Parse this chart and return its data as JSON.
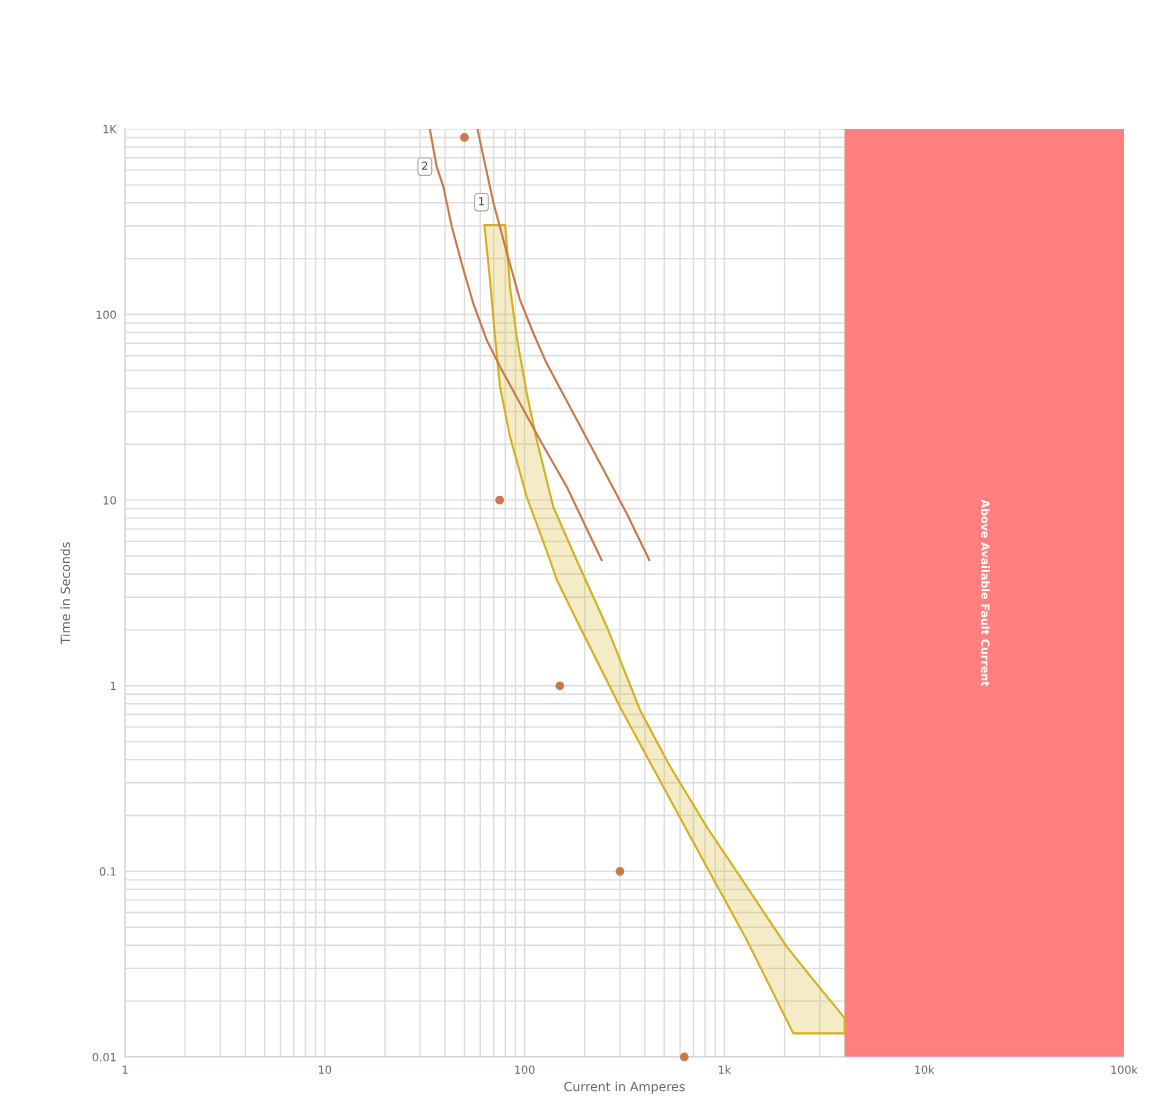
{
  "chart_data": {
    "type": "line",
    "xlabel": "Current in Amperes",
    "ylabel": "Time in Seconds",
    "log": "xy",
    "grid": true,
    "xlim": [
      1,
      100000
    ],
    "ylim": [
      0.01,
      1000
    ],
    "xticks": [
      1,
      10,
      100,
      {
        "value": 1000,
        "label": "1k"
      },
      {
        "value": 10000,
        "label": "10k"
      },
      {
        "value": 100000,
        "label": "100k"
      }
    ],
    "yticks": [
      0.01,
      0.1,
      1,
      10,
      100,
      {
        "value": 1000,
        "label": "1K"
      }
    ],
    "bands": [
      {
        "axis": "x",
        "from": 4000,
        "to": 100000,
        "label": "Above Available Fault Current",
        "color": "#ff7f7f"
      }
    ],
    "series": [
      {
        "type": "area",
        "color": "#d4b021",
        "x": [
          62.9,
          80.0,
          84.5,
          91.3,
          102.5,
          115,
          139,
          182,
          258,
          378,
          535,
          815,
          1294,
          2050,
          2787,
          4000,
          4000,
          2213,
          1294,
          815,
          514,
          300,
          189,
          145,
          134,
          102.5,
          84.5,
          75.3,
          71.1,
          67.1
        ],
        "values": [
          304,
          304,
          141,
          76.0,
          37.7,
          21.1,
          9.23,
          4.76,
          2.08,
          0.741,
          0.367,
          0.174,
          0.0827,
          0.0393,
          0.026,
          0.0162,
          0.0134,
          0.0134,
          0.0427,
          0.106,
          0.264,
          0.771,
          2.08,
          3.71,
          4.76,
          10.4,
          22.0,
          40.9,
          76.0,
          154
        ]
      },
      {
        "name": "1",
        "color": "#c8794a",
        "x": [
          58.2,
          69.7,
          81.3,
          94.8,
          110.6,
          128.9,
          175.3,
          238.5,
          324,
          421
        ],
        "values": [
          988,
          403,
          217,
          120,
          79.3,
          54.6,
          29.4,
          15.8,
          8.5,
          4.76
        ]
      },
      {
        "name": "2",
        "color": "#c8794a",
        "x": [
          33.6,
          36.3,
          39.2,
          43.2,
          48.4,
          55.3,
          64.6,
          75.3,
          94.8,
          119.4,
          162.5,
          243
        ],
        "values": [
          988,
          626,
          489,
          298,
          189,
          115,
          73.0,
          52.4,
          33.3,
          21.1,
          11.8,
          4.76
        ]
      },
      {
        "type": "scatter",
        "color": "#c8794a",
        "x": [
          50,
          75,
          150,
          300,
          630
        ],
        "values": [
          900,
          10,
          1,
          0.1,
          0.01
        ]
      }
    ]
  }
}
